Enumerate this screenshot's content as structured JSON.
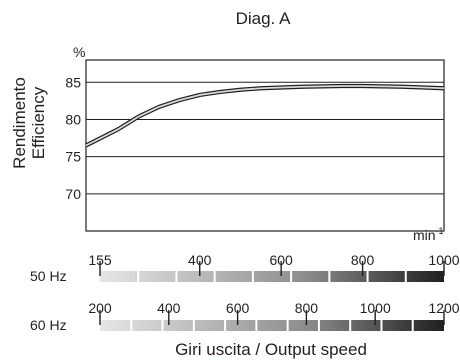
{
  "chart_data": {
    "type": "line",
    "title": "Diag. A",
    "ylabel_lines": [
      "Rendimento",
      "Efficiency"
    ],
    "y_unit": "%",
    "x_unit_base": "min",
    "x_unit_exp": "-1",
    "xlabel": "Giri uscita / Output speed",
    "ylim": [
      65,
      88
    ],
    "yticks": [
      70,
      75,
      80,
      85
    ],
    "grid": true,
    "x_scale_50hz": {
      "label": "50 Hz",
      "range": [
        155,
        1000
      ],
      "ticks": [
        155,
        400,
        600,
        800,
        1000
      ]
    },
    "x_scale_60hz": {
      "label": "60 Hz",
      "range": [
        200,
        1200
      ],
      "ticks": [
        200,
        400,
        600,
        800,
        1000,
        1200
      ]
    },
    "series": [
      {
        "x": [
          155,
          200,
          250,
          300,
          350,
          400,
          450,
          500,
          550,
          600,
          650,
          700,
          750,
          800,
          850,
          900,
          950,
          1000
        ],
        "y": [
          76.5,
          78.7,
          80.4,
          81.7,
          82.6,
          83.3,
          83.7,
          84.0,
          84.2,
          84.3,
          84.4,
          84.45,
          84.5,
          84.5,
          84.45,
          84.4,
          84.3,
          84.2
        ]
      }
    ]
  }
}
